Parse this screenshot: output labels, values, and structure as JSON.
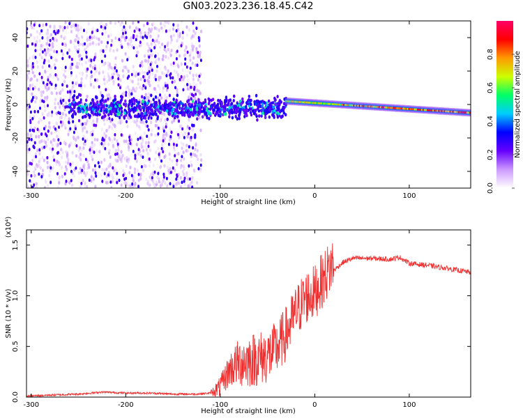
{
  "title": "GN03.2023.236.18.45.C42",
  "chart_data": [
    {
      "type": "heatmap",
      "name": "spectrogram",
      "xlabel": "Height of straight line (km)",
      "ylabel": "Frequency (Hz)",
      "xlim": [
        -305,
        165
      ],
      "ylim": [
        -50,
        50
      ],
      "xticks": [
        -300,
        -200,
        -100,
        0,
        100
      ],
      "xtick_labels": [
        "-300",
        "-200",
        "-100",
        "0",
        "100"
      ],
      "yticks": [
        -40,
        -20,
        0,
        20,
        40
      ],
      "ytick_labels": [
        "-40",
        "-20",
        "0",
        "20",
        "40"
      ],
      "colorbar": {
        "label": "Normalized spectral amplitude",
        "range": [
          0,
          1
        ],
        "ticks": [
          0.0,
          0.2,
          0.4,
          0.6,
          0.8
        ],
        "tick_labels": [
          "0.0",
          "0.2",
          "0.4",
          "0.6",
          "0.8"
        ],
        "colors": [
          "#ffffff",
          "#cc99ff",
          "#6600ff",
          "#0000ff",
          "#00ccff",
          "#00ff66",
          "#ccff00",
          "#ff9900",
          "#ff0000",
          "#ff0066"
        ]
      },
      "features": [
        {
          "region": "broadband noise",
          "x_range": [
            -305,
            -120
          ],
          "freq_range": [
            -50,
            50
          ],
          "amplitude": 0.15
        },
        {
          "region": "low-frequency band",
          "x_range": [
            -260,
            -30
          ],
          "freq_range": [
            -15,
            10
          ],
          "amplitude": 0.3
        },
        {
          "region": "narrow band",
          "x_range": [
            -30,
            165
          ],
          "center_freq": [
            2,
            -5
          ],
          "amplitude": 0.85
        }
      ]
    },
    {
      "type": "line",
      "name": "snr",
      "xlabel": "Height of straight line (km)",
      "ylabel": "SNR (10 * v/v)",
      "y_multiplier": "(x10⁴)",
      "xlim": [
        -305,
        165
      ],
      "ylim": [
        0,
        1.65
      ],
      "xticks": [
        -300,
        -200,
        -100,
        0,
        100
      ],
      "xtick_labels": [
        "-300",
        "-200",
        "-100",
        "0",
        "100"
      ],
      "yticks": [
        0.0,
        0.5,
        1.0,
        1.5
      ],
      "ytick_labels": [
        "0.0",
        "0.5",
        "1.0",
        "1.5"
      ],
      "color": "#f03030",
      "series": [
        {
          "name": "SNR",
          "x": [
            -305,
            -280,
            -250,
            -225,
            -200,
            -175,
            -150,
            -125,
            -110,
            -100,
            -90,
            -80,
            -70,
            -60,
            -50,
            -40,
            -30,
            -20,
            -10,
            0,
            10,
            20,
            30,
            40,
            60,
            80,
            90,
            100,
            120,
            140,
            165
          ],
          "y": [
            0.0,
            0.01,
            0.02,
            0.04,
            0.03,
            0.03,
            0.02,
            0.02,
            0.03,
            0.07,
            0.22,
            0.27,
            0.28,
            0.3,
            0.32,
            0.4,
            0.55,
            0.75,
            0.9,
            0.95,
            1.1,
            1.25,
            1.33,
            1.37,
            1.37,
            1.36,
            1.38,
            1.32,
            1.3,
            1.27,
            1.23
          ]
        }
      ]
    }
  ]
}
